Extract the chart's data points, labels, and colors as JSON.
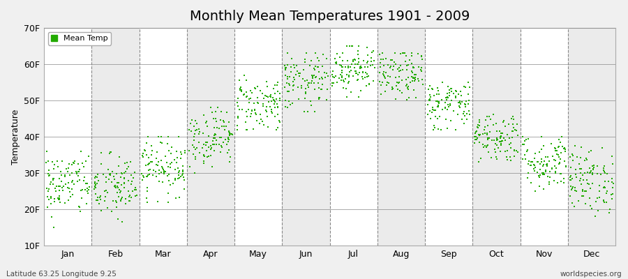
{
  "title": "Monthly Mean Temperatures 1901 - 2009",
  "ylabel": "Temperature",
  "ylim": [
    10,
    70
  ],
  "yticks": [
    10,
    20,
    30,
    40,
    50,
    60,
    70
  ],
  "ytick_labels": [
    "10F",
    "20F",
    "30F",
    "40F",
    "50F",
    "60F",
    "70F"
  ],
  "months": [
    "Jan",
    "Feb",
    "Mar",
    "Apr",
    "May",
    "Jun",
    "Jul",
    "Aug",
    "Sep",
    "Oct",
    "Nov",
    "Dec"
  ],
  "month_means_F": [
    27,
    26,
    32,
    40,
    49,
    55,
    59,
    57,
    49,
    40,
    33,
    28
  ],
  "month_stds_F": [
    4.5,
    4.5,
    4,
    4,
    4,
    4,
    3.5,
    3.5,
    3.5,
    3.5,
    4,
    4.5
  ],
  "month_min_F": [
    15,
    14,
    22,
    30,
    42,
    47,
    51,
    49,
    42,
    33,
    25,
    18
  ],
  "month_max_F": [
    36,
    37,
    40,
    48,
    57,
    63,
    65,
    63,
    55,
    47,
    40,
    38
  ],
  "n_years": 109,
  "dot_color": "#22aa00",
  "dot_size": 3,
  "bg_even_color": "#ffffff",
  "bg_odd_color": "#ebebeb",
  "grid_color": "#888888",
  "dashed_line_color": "#888888",
  "title_fontsize": 14,
  "axis_label_fontsize": 9,
  "tick_fontsize": 9,
  "legend_label": "Mean Temp",
  "bottom_left_text": "Latitude 63.25 Longitude 9.25",
  "bottom_right_text": "worldspecies.org"
}
